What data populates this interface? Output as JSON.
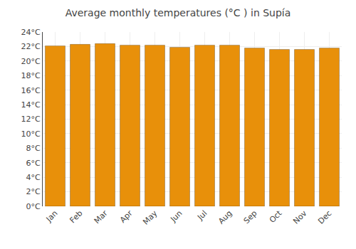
{
  "chart_data": {
    "type": "bar",
    "title": "Average monthly temperatures (°C ) in Supía",
    "categories": [
      "Jan",
      "Feb",
      "Mar",
      "Apr",
      "May",
      "Jun",
      "Jul",
      "Aug",
      "Sep",
      "Oct",
      "Nov",
      "Dec"
    ],
    "values": [
      22.1,
      22.3,
      22.4,
      22.2,
      22.2,
      21.9,
      22.2,
      22.2,
      21.8,
      21.6,
      21.6,
      21.8
    ],
    "color": "#E8900A",
    "ylim": [
      0,
      24
    ],
    "yticks": [
      {
        "value": 0,
        "label": "0°C"
      },
      {
        "value": 2,
        "label": "2°C"
      },
      {
        "value": 4,
        "label": "4°C"
      },
      {
        "value": 6,
        "label": "6°C"
      },
      {
        "value": 8,
        "label": "8°C"
      },
      {
        "value": 10,
        "label": "10°C"
      },
      {
        "value": 12,
        "label": "12°C"
      },
      {
        "value": 14,
        "label": "14°C"
      },
      {
        "value": 16,
        "label": "16°C"
      },
      {
        "value": 18,
        "label": "18°C"
      },
      {
        "value": 20,
        "label": "20°C"
      },
      {
        "value": 22,
        "label": "22°C"
      },
      {
        "value": 24,
        "label": "24°C"
      }
    ],
    "grid": true
  }
}
